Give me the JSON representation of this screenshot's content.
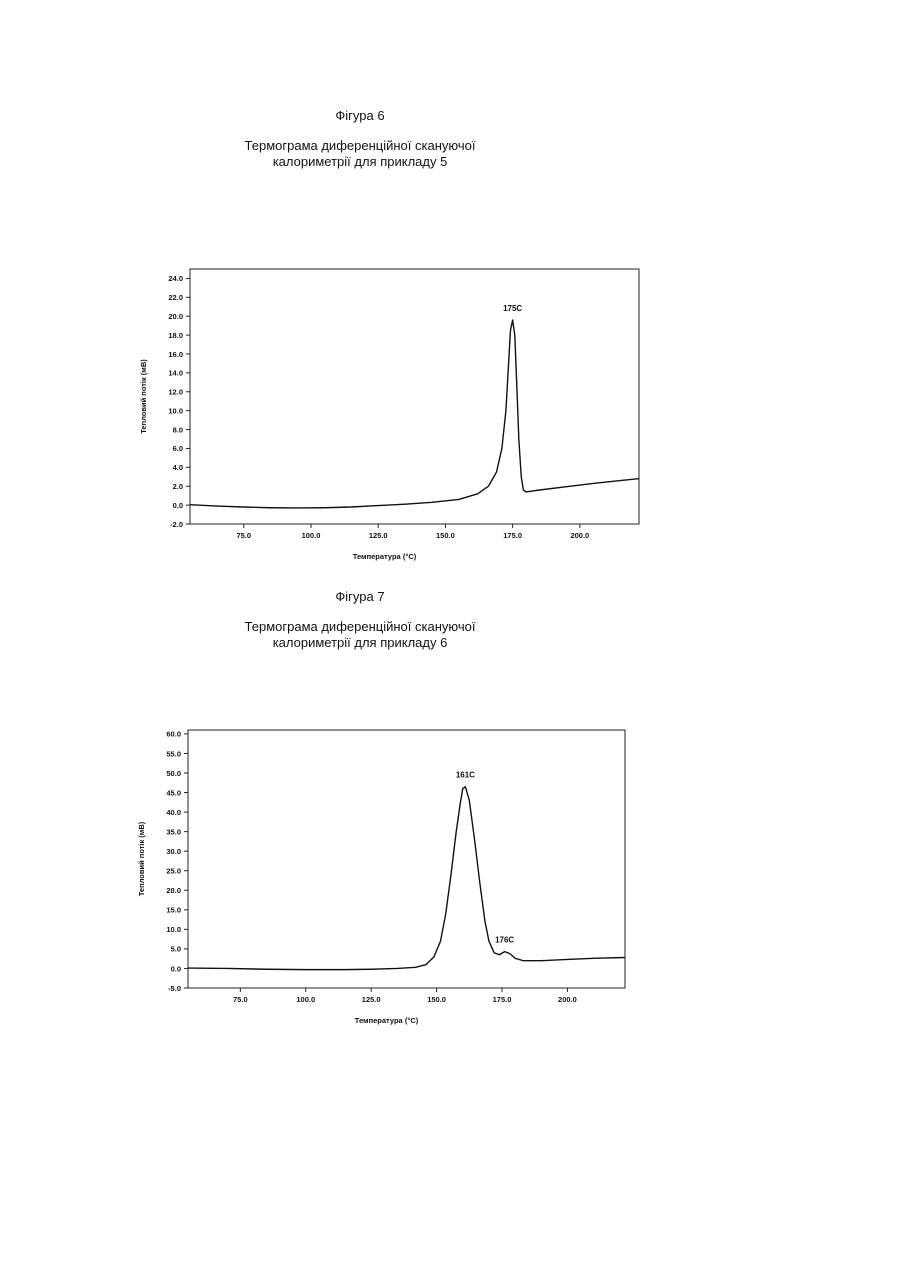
{
  "figures": [
    {
      "label": "Фігура 6",
      "title_line1": "Термограма диференційної скануючої",
      "title_line2": "калориметрії для прикладу 5"
    },
    {
      "label": "Фігура 7",
      "title_line1": "Термограма диференційної скануючої",
      "title_line2": "калориметрії для прикладу 6"
    }
  ],
  "chart_data": [
    {
      "type": "line",
      "xlabel": "Температура (°C)",
      "ylabel": "Тепловий потік (мВ)",
      "xlim": [
        55,
        222
      ],
      "ylim": [
        -2.0,
        25.0
      ],
      "xticks": [
        75.0,
        100.0,
        125.0,
        150.0,
        175.0,
        200.0
      ],
      "xtick_labels": [
        "75.0",
        "100.0",
        "125.0",
        "150.0",
        "175.0",
        "200.0"
      ],
      "yticks": [
        -2.0,
        0.0,
        2.0,
        4.0,
        6.0,
        8.0,
        10.0,
        12.0,
        14.0,
        16.0,
        18.0,
        20.0,
        22.0,
        24.0
      ],
      "ytick_labels": [
        "-2.0",
        "0.0",
        "2.0",
        "4.0",
        "6.0",
        "8.0",
        "10.0",
        "12.0",
        "14.0",
        "16.0",
        "18.0",
        "20.0",
        "22.0",
        "24.0"
      ],
      "grid": false,
      "series": [
        {
          "x": [
            55,
            65,
            75,
            85,
            95,
            105,
            115,
            125,
            135,
            145,
            155,
            162,
            166,
            169,
            171,
            172.5,
            173.5,
            174.2,
            175,
            175.8,
            176.5,
            177.3,
            178.2,
            179,
            180,
            185,
            195,
            205,
            215,
            222
          ],
          "y": [
            0.05,
            -0.1,
            -0.2,
            -0.28,
            -0.3,
            -0.28,
            -0.2,
            -0.05,
            0.1,
            0.3,
            0.6,
            1.2,
            2.0,
            3.5,
            6.0,
            10.0,
            15.0,
            18.5,
            19.6,
            18.0,
            13.0,
            7.0,
            3.0,
            1.6,
            1.4,
            1.6,
            1.95,
            2.3,
            2.6,
            2.8
          ]
        }
      ],
      "annotations": [
        {
          "text": "175C",
          "x": 175,
          "y": 19.6
        }
      ]
    },
    {
      "type": "line",
      "xlabel": "Температура (°C)",
      "ylabel": "Тепловий потік (мВ)",
      "xlim": [
        55,
        222
      ],
      "ylim": [
        -5.0,
        61.0
      ],
      "xticks": [
        75.0,
        100.0,
        125.0,
        150.0,
        175.0,
        200.0
      ],
      "xtick_labels": [
        "75.0",
        "100.0",
        "125.0",
        "150.0",
        "175.0",
        "200.0"
      ],
      "yticks": [
        -5.0,
        0.0,
        5.0,
        10.0,
        15.0,
        20.0,
        25.0,
        30.0,
        35.0,
        40.0,
        45.0,
        50.0,
        55.0,
        60.0
      ],
      "ytick_labels": [
        "-5.0",
        "0.0",
        "5.0",
        "10.0",
        "15.0",
        "20.0",
        "25.0",
        "30.0",
        "35.0",
        "40.0",
        "45.0",
        "50.0",
        "55.0",
        "60.0"
      ],
      "grid": false,
      "series": [
        {
          "x": [
            55,
            70,
            85,
            100,
            115,
            125,
            135,
            142,
            146,
            149,
            151.5,
            153.5,
            155.5,
            157.5,
            159,
            160,
            161,
            162.5,
            164.5,
            166.5,
            168.5,
            170,
            172,
            174,
            176,
            178,
            180,
            183,
            190,
            200,
            210,
            222
          ],
          "y": [
            0.1,
            0.0,
            -0.2,
            -0.3,
            -0.3,
            -0.2,
            0.0,
            0.3,
            1.0,
            3.0,
            7.0,
            14.0,
            24.0,
            35.0,
            42.0,
            46.0,
            46.5,
            43.0,
            33.0,
            22.0,
            12.0,
            7.0,
            4.0,
            3.5,
            4.3,
            3.8,
            2.6,
            2.0,
            2.0,
            2.3,
            2.6,
            2.8
          ]
        }
      ],
      "annotations": [
        {
          "text": "161C",
          "x": 161,
          "y": 46.5
        },
        {
          "text": "176C",
          "x": 176,
          "y": 4.3
        }
      ]
    }
  ]
}
